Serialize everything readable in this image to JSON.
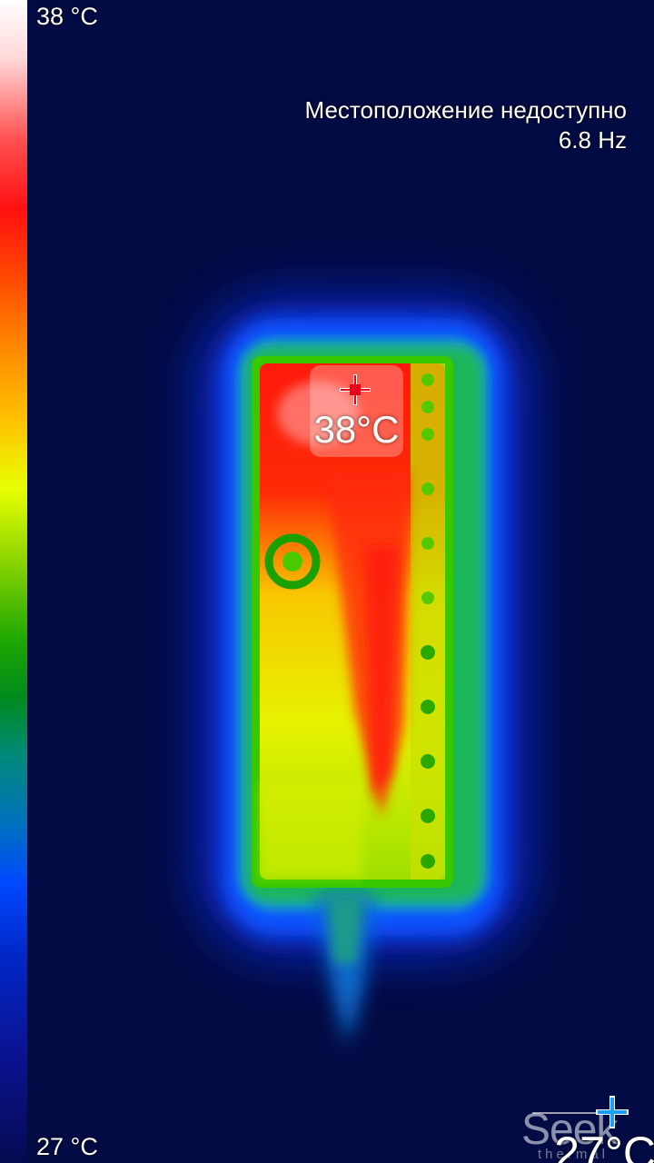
{
  "scale": {
    "max_label": "38 °C",
    "min_label": "27 °C"
  },
  "status": {
    "location": "Местоположение недоступно",
    "frame_rate": "6.8 Hz"
  },
  "spot": {
    "temperature": "38°C"
  },
  "brand": {
    "word": "Seek",
    "sub": "thermal"
  },
  "readout": {
    "bottom_temperature": "27°C"
  },
  "colors": {
    "background": "#030b45",
    "crosshair": "#e8001c",
    "logo_crosshair": "#1a9fff"
  }
}
